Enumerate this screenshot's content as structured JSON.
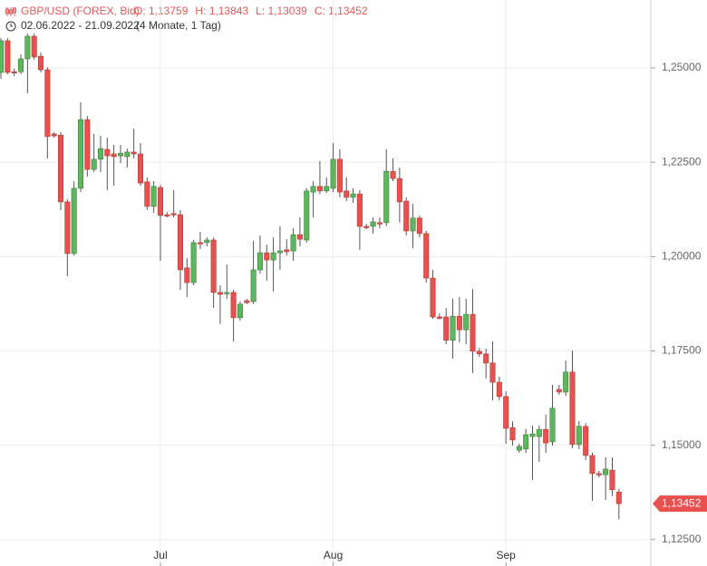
{
  "chart_data": {
    "type": "candlestick",
    "title": "GBP/USD (FOREX, Bid)",
    "ohlc_labels": [
      "O: 1,13759",
      "H: 1,13843",
      "L: 1,13039",
      "C: 1,13452"
    ],
    "subtitle": "02.06.2022 - 21.09.2022",
    "range_note": "(4 Monate, 1 Tag)",
    "last_price": {
      "value": 1.13452,
      "label": "1,13452"
    },
    "up_color": "#5cb85c",
    "down_color": "#e8514d",
    "grid": true,
    "xlim": [
      -0.14,
      97.8
    ],
    "ylim": [
      1.118,
      1.268
    ],
    "xticks": [
      {
        "value": 24,
        "label": "Jul"
      },
      {
        "value": 50,
        "label": "Aug"
      },
      {
        "value": 76,
        "label": "Sep"
      }
    ],
    "yticks": [
      {
        "value": 1.125,
        "label": "1,12500"
      },
      {
        "value": 1.15,
        "label": "1,15000"
      },
      {
        "value": 1.175,
        "label": "1,17500"
      },
      {
        "value": 1.2,
        "label": "1,20000"
      },
      {
        "value": 1.225,
        "label": "1,22500"
      },
      {
        "value": 1.25,
        "label": "1,25000"
      }
    ],
    "open": [
      1.2488,
      1.2572,
      1.249,
      1.249,
      1.2524,
      1.2584,
      1.2531,
      1.2495,
      1.2325,
      1.2322,
      1.2145,
      1.2008,
      1.2181,
      1.2363,
      1.2231,
      1.2258,
      1.2284,
      1.2272,
      1.2267,
      1.2265,
      1.2277,
      1.2272,
      1.2198,
      1.2133,
      1.2183,
      1.2111,
      1.2114,
      1.2111,
      1.197,
      1.1931,
      1.2037,
      1.2037,
      1.2044,
      1.1905,
      1.1902,
      1.1905,
      1.1838,
      1.1883,
      1.1881,
      1.1965,
      1.201,
      1.1991,
      1.201,
      1.2018,
      1.2015,
      1.2058,
      1.2044,
      1.2171,
      1.2186,
      1.2174,
      1.2181,
      1.2258,
      1.2174,
      1.2157,
      1.2166,
      1.208,
      1.208,
      1.209,
      1.209,
      1.2226,
      1.2207,
      1.2147,
      1.2068,
      1.2102,
      1.2061,
      1.1943,
      1.184,
      1.184,
      1.1778,
      1.1842,
      1.1806,
      1.1847,
      1.1749,
      1.1742,
      1.1718,
      1.1667,
      1.1629,
      1.1547,
      1.1487,
      1.149,
      1.1523,
      1.1523,
      1.1542,
      1.1509,
      1.1648,
      1.1641,
      1.1694,
      1.1502,
      1.155,
      1.1473,
      1.1425,
      1.1422,
      1.1434,
      1.13759
    ],
    "high": [
      1.2579,
      1.2579,
      1.2498,
      1.2536,
      1.2591,
      1.2591,
      1.2541,
      1.2502,
      1.233,
      1.233,
      1.2152,
      1.22,
      1.2409,
      1.2373,
      1.2325,
      1.232,
      1.2315,
      1.2296,
      1.2296,
      1.2286,
      1.2339,
      1.2301,
      1.221,
      1.22,
      1.219,
      1.2118,
      1.2176,
      1.2123,
      1.1996,
      1.2044,
      1.2066,
      1.2051,
      1.2051,
      1.1924,
      1.1979,
      1.1912,
      1.1881,
      1.1888,
      1.2042,
      1.2056,
      1.2032,
      1.2051,
      1.208,
      1.2046,
      1.2075,
      1.2104,
      1.2181,
      1.22,
      1.2253,
      1.221,
      1.2301,
      1.2284,
      1.221,
      1.2181,
      1.2176,
      1.2087,
      1.2104,
      1.2104,
      1.2284,
      1.226,
      1.2236,
      1.2157,
      1.214,
      1.2109,
      1.2068,
      1.1965,
      1.185,
      1.1864,
      1.1888,
      1.1893,
      1.1888,
      1.1914,
      1.1758,
      1.1756,
      1.1775,
      1.1682,
      1.1643,
      1.1564,
      1.1504,
      1.1543,
      1.1552,
      1.1552,
      1.1581,
      1.166,
      1.166,
      1.1725,
      1.1751,
      1.1564,
      1.1559,
      1.148,
      1.1432,
      1.1468,
      1.1468,
      1.13843
    ],
    "low": [
      1.2471,
      1.2483,
      1.2478,
      1.2483,
      1.2433,
      1.2522,
      1.2488,
      1.226,
      1.2315,
      1.2123,
      1.1948,
      1.2003,
      1.2171,
      1.2212,
      1.2224,
      1.2224,
      1.2176,
      1.2188,
      1.2248,
      1.2236,
      1.226,
      1.2188,
      1.2123,
      1.2116,
      1.1989,
      1.2104,
      1.2104,
      1.1912,
      1.1893,
      1.1924,
      1.202,
      1.2027,
      1.1864,
      1.1821,
      1.1888,
      1.1775,
      1.183,
      1.1874,
      1.1874,
      1.1955,
      1.1936,
      1.1907,
      1.1965,
      1.2003,
      1.1989,
      1.2027,
      1.2037,
      1.2104,
      1.2166,
      1.2169,
      1.2171,
      1.2157,
      1.2147,
      1.2142,
      1.2018,
      1.2073,
      1.2061,
      1.2075,
      1.208,
      1.22,
      1.209,
      1.2056,
      1.2022,
      1.2051,
      1.1931,
      1.1835,
      1.1833,
      1.1768,
      1.173,
      1.1773,
      1.1768,
      1.1691,
      1.1734,
      1.1677,
      1.1619,
      1.1619,
      1.1504,
      1.1499,
      1.148,
      1.148,
      1.1408,
      1.1456,
      1.148,
      1.1499,
      1.1634,
      1.1631,
      1.1492,
      1.149,
      1.1461,
      1.1353,
      1.1415,
      1.1355,
      1.1365,
      1.13039
    ],
    "close": [
      1.2572,
      1.2488,
      1.2488,
      1.2524,
      1.2584,
      1.2529,
      1.2495,
      1.2318,
      1.232,
      1.2145,
      1.2008,
      1.2181,
      1.2363,
      1.2231,
      1.2258,
      1.2286,
      1.2267,
      1.2265,
      1.2274,
      1.2277,
      1.2272,
      1.2195,
      1.2133,
      1.2186,
      1.2109,
      1.2109,
      1.2111,
      1.1965,
      1.1931,
      1.2037,
      1.2034,
      1.2044,
      1.1905,
      1.19,
      1.1905,
      1.1838,
      1.1874,
      1.1878,
      1.1965,
      1.201,
      1.1991,
      1.201,
      1.2015,
      1.2013,
      1.2058,
      1.2046,
      1.2174,
      1.2186,
      1.2174,
      1.2186,
      1.2258,
      1.2171,
      1.2157,
      1.2166,
      1.208,
      1.2078,
      1.2092,
      1.2087,
      1.2226,
      1.2207,
      1.2145,
      1.2068,
      1.2102,
      1.2061,
      1.1943,
      1.184,
      1.1838,
      1.1778,
      1.1842,
      1.1806,
      1.1847,
      1.1749,
      1.1742,
      1.1718,
      1.1667,
      1.1629,
      1.1545,
      1.1514,
      1.1497,
      1.1528,
      1.153,
      1.1542,
      1.1506,
      1.1598,
      1.1641,
      1.1694,
      1.1502,
      1.155,
      1.1473,
      1.1425,
      1.1422,
      1.1437,
      1.1382,
      1.13452
    ]
  }
}
